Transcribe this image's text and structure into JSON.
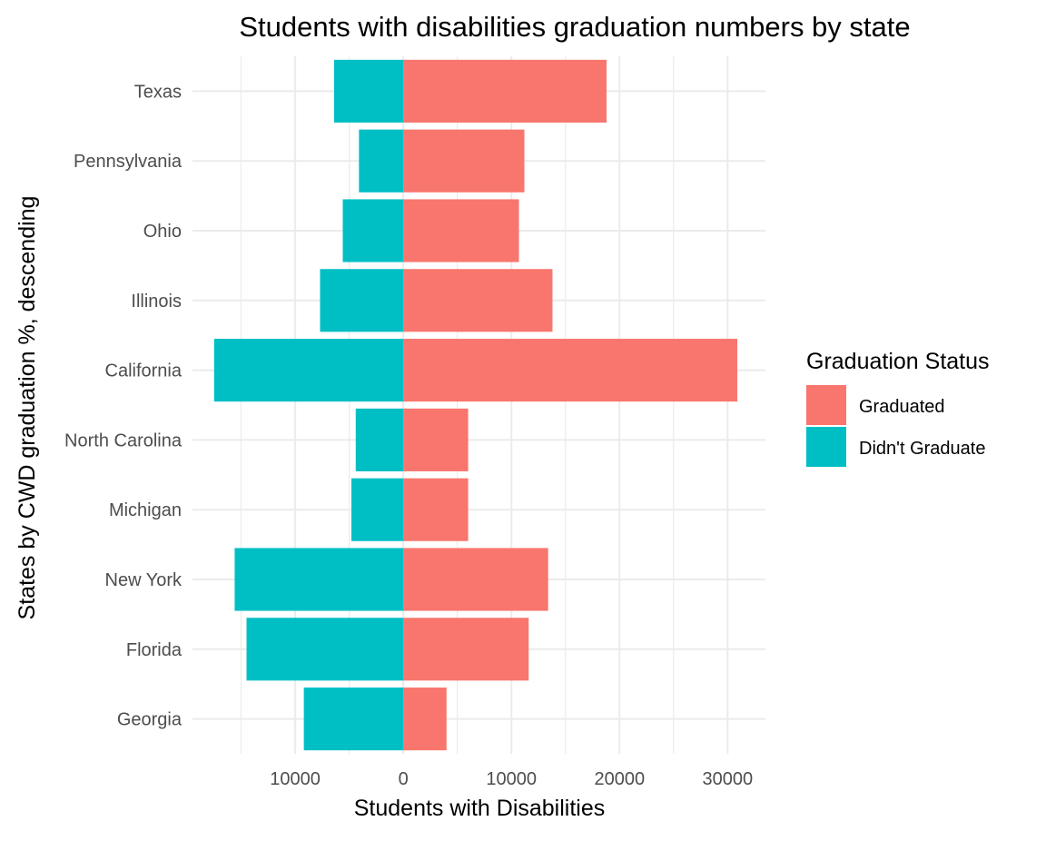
{
  "chart_data": {
    "type": "bar",
    "orientation": "horizontal-diverging",
    "title": "Students with disabilities graduation numbers by state",
    "xlabel": "Students with Disabilities",
    "ylabel": "States by CWD graduation %, descending",
    "categories": [
      "Texas",
      "Pennsylvania",
      "Ohio",
      "Illinois",
      "California",
      "North Carolina",
      "Michigan",
      "New York",
      "Florida",
      "Georgia"
    ],
    "series": [
      {
        "name": "Graduated",
        "color": "#F8766D",
        "values": [
          18800,
          11200,
          10700,
          13800,
          30900,
          6000,
          6000,
          13400,
          11600,
          4000
        ]
      },
      {
        "name": "Didn't Graduate",
        "color": "#00BFC4",
        "values": [
          6400,
          4100,
          5600,
          7700,
          17500,
          4400,
          4800,
          15600,
          14500,
          9200
        ]
      }
    ],
    "x_ticks": [
      -10000,
      0,
      10000,
      20000,
      30000
    ],
    "x_tick_labels": [
      "10000",
      "0",
      "10000",
      "20000",
      "30000"
    ],
    "xlim": [
      -19500,
      33500
    ],
    "grid": true,
    "legend": {
      "title": "Graduation Status",
      "position": "right"
    }
  }
}
